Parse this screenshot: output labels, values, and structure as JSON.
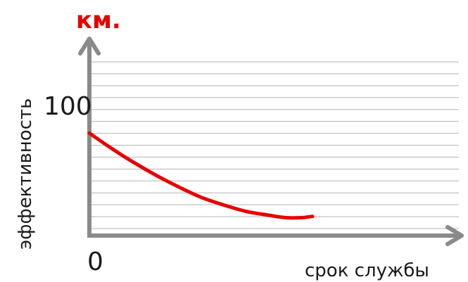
{
  "chart_data": {
    "type": "line",
    "title": "км.",
    "xlabel": "срок службы",
    "ylabel": "эффективность",
    "x_tick_labels": [
      "0"
    ],
    "y_tick_labels": [
      "100"
    ],
    "xlim": [
      0,
      100
    ],
    "ylim": [
      0,
      140
    ],
    "y_ticks": [
      0,
      100
    ],
    "grid": true,
    "series": [
      {
        "x": [
          0,
          10,
          20,
          30,
          40,
          50,
          60,
          70,
          80,
          88,
          95,
          100
        ],
        "y": [
          80,
          68,
          57,
          47,
          38,
          30,
          24,
          19,
          16,
          14,
          14,
          15
        ]
      }
    ]
  },
  "colors": {
    "axis": "#8a8a8a",
    "grid": "#b4b4b4",
    "line": "#e60000",
    "unit_label": "#e60000",
    "text": "#1a1a1a"
  }
}
